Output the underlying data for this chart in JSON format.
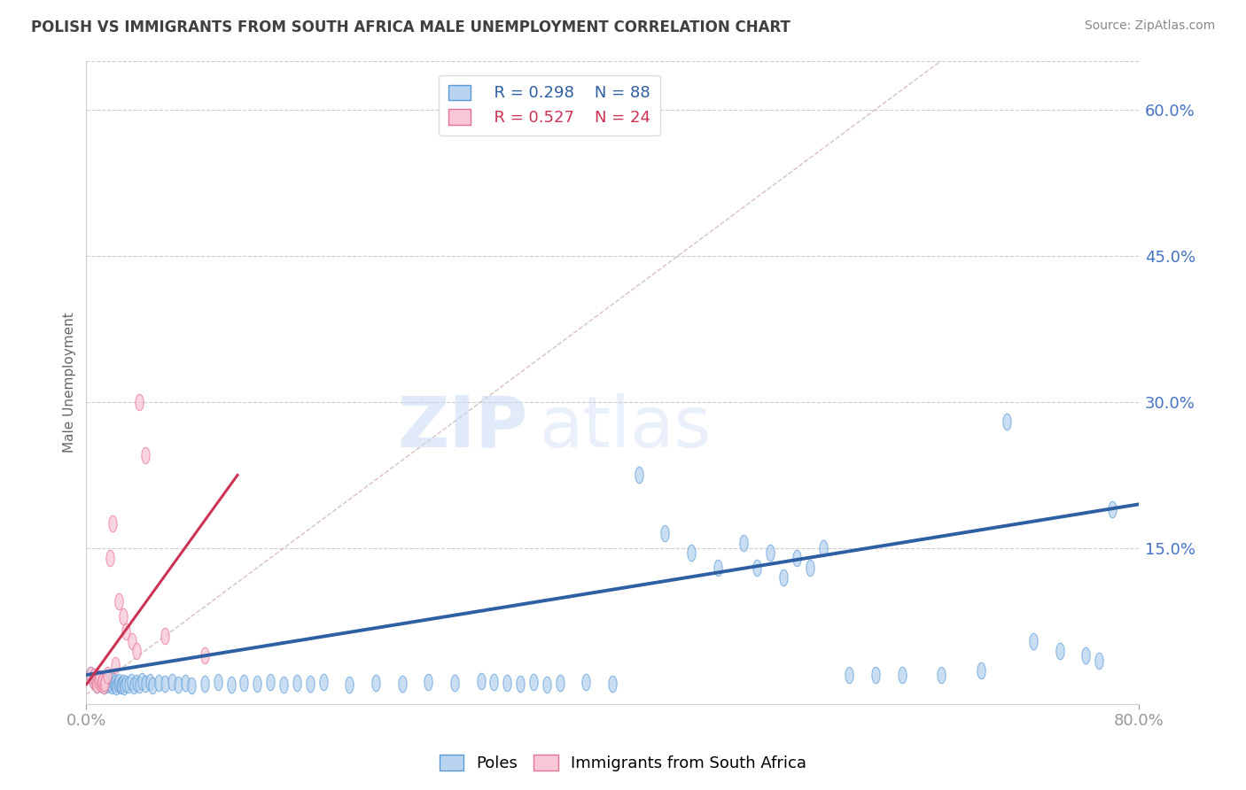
{
  "title": "POLISH VS IMMIGRANTS FROM SOUTH AFRICA MALE UNEMPLOYMENT CORRELATION CHART",
  "source": "Source: ZipAtlas.com",
  "ylabel": "Male Unemployment",
  "watermark": "ZIPatlas",
  "x_min": 0.0,
  "x_max": 0.8,
  "y_min": -0.01,
  "y_max": 0.65,
  "y_ticks": [
    0.0,
    0.15,
    0.3,
    0.45,
    0.6
  ],
  "y_tick_labels": [
    "",
    "15.0%",
    "30.0%",
    "45.0%",
    "60.0%"
  ],
  "legend_r1": "R = 0.298",
  "legend_n1": "N = 88",
  "legend_r2": "R = 0.527",
  "legend_n2": "N = 24",
  "color_poles_face": "#b8d4f0",
  "color_poles_edge": "#5b9bd5",
  "color_immigrants_face": "#f8c8d8",
  "color_immigrants_edge": "#e87090",
  "color_line_poles": "#2e5fa3",
  "color_line_immigrants": "#cc3355",
  "color_diag": "#d0b0b0",
  "color_axis_labels": "#4472c4",
  "color_title": "#404040",
  "background_color": "#ffffff",
  "grid_color": "#cccccc",
  "poles_x": [
    0.003,
    0.005,
    0.006,
    0.007,
    0.008,
    0.009,
    0.01,
    0.011,
    0.012,
    0.013,
    0.014,
    0.015,
    0.016,
    0.017,
    0.018,
    0.019,
    0.02,
    0.021,
    0.022,
    0.023,
    0.024,
    0.025,
    0.026,
    0.027,
    0.028,
    0.029,
    0.03,
    0.032,
    0.034,
    0.036,
    0.038,
    0.04,
    0.042,
    0.045,
    0.048,
    0.05,
    0.055,
    0.06,
    0.065,
    0.07,
    0.075,
    0.08,
    0.09,
    0.1,
    0.11,
    0.12,
    0.13,
    0.14,
    0.15,
    0.16,
    0.17,
    0.18,
    0.2,
    0.22,
    0.24,
    0.26,
    0.28,
    0.3,
    0.31,
    0.32,
    0.33,
    0.34,
    0.35,
    0.36,
    0.38,
    0.4,
    0.42,
    0.44,
    0.46,
    0.48,
    0.5,
    0.51,
    0.52,
    0.53,
    0.54,
    0.55,
    0.56,
    0.58,
    0.6,
    0.62,
    0.65,
    0.68,
    0.7,
    0.72,
    0.74,
    0.76,
    0.77,
    0.78
  ],
  "poles_y": [
    0.02,
    0.015,
    0.018,
    0.012,
    0.01,
    0.014,
    0.016,
    0.011,
    0.013,
    0.009,
    0.012,
    0.01,
    0.015,
    0.011,
    0.013,
    0.009,
    0.014,
    0.01,
    0.012,
    0.008,
    0.011,
    0.013,
    0.009,
    0.01,
    0.012,
    0.008,
    0.011,
    0.01,
    0.013,
    0.009,
    0.012,
    0.01,
    0.014,
    0.011,
    0.013,
    0.009,
    0.012,
    0.011,
    0.013,
    0.01,
    0.012,
    0.009,
    0.011,
    0.013,
    0.01,
    0.012,
    0.011,
    0.013,
    0.01,
    0.012,
    0.011,
    0.013,
    0.01,
    0.012,
    0.011,
    0.013,
    0.012,
    0.014,
    0.013,
    0.012,
    0.011,
    0.013,
    0.01,
    0.012,
    0.013,
    0.011,
    0.225,
    0.165,
    0.145,
    0.13,
    0.155,
    0.13,
    0.145,
    0.12,
    0.14,
    0.13,
    0.15,
    0.02,
    0.02,
    0.02,
    0.02,
    0.025,
    0.28,
    0.055,
    0.045,
    0.04,
    0.035,
    0.19
  ],
  "immigrants_x": [
    0.003,
    0.005,
    0.006,
    0.007,
    0.008,
    0.009,
    0.01,
    0.011,
    0.012,
    0.013,
    0.014,
    0.016,
    0.018,
    0.02,
    0.022,
    0.025,
    0.028,
    0.03,
    0.035,
    0.038,
    0.04,
    0.045,
    0.06,
    0.09
  ],
  "immigrants_y": [
    0.02,
    0.015,
    0.018,
    0.012,
    0.01,
    0.014,
    0.016,
    0.011,
    0.013,
    0.009,
    0.012,
    0.02,
    0.14,
    0.175,
    0.03,
    0.095,
    0.08,
    0.065,
    0.055,
    0.045,
    0.3,
    0.245,
    0.06,
    0.04
  ]
}
